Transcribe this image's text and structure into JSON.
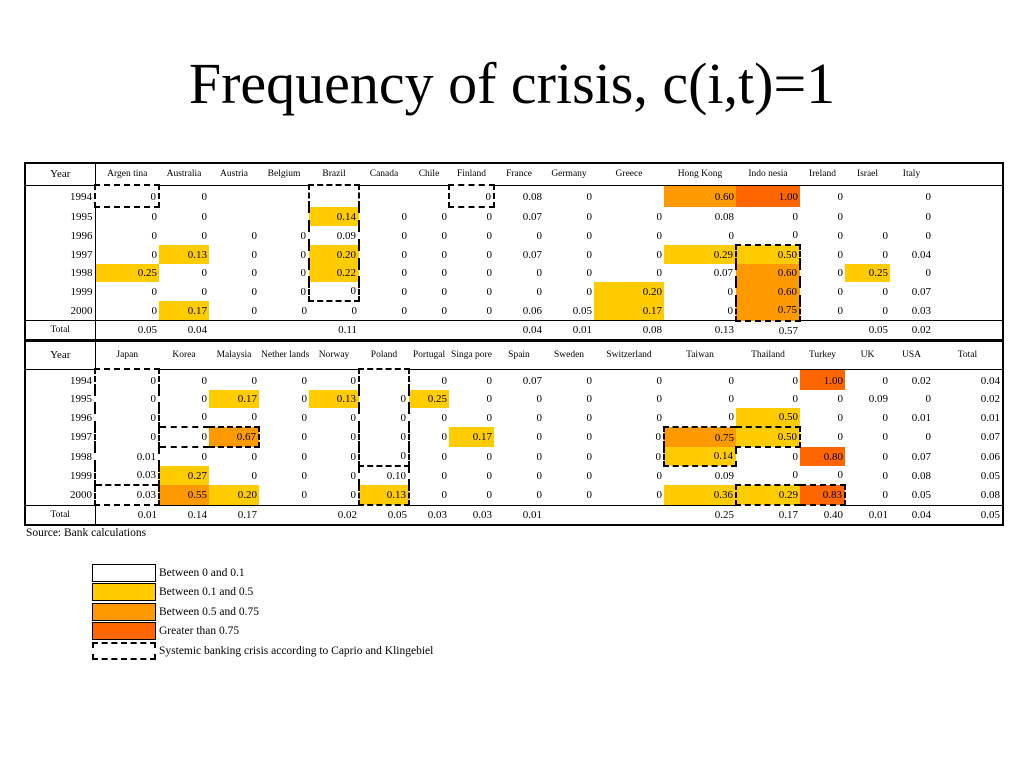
{
  "title": "Frequency of crisis, c(i,t)=1",
  "table1": {
    "year_label": "Year",
    "countries": [
      "Argen tina",
      "Australia",
      "Austria",
      "Belgium",
      "Brazil",
      "Canada",
      "Chile",
      "Finland",
      "France",
      "Germany",
      "Greece",
      "Hong Kong",
      "Indo nesia",
      "Ireland",
      "Israel",
      "Italy",
      ""
    ],
    "rows": [
      {
        "year": "1994",
        "values": [
          "0",
          "0",
          "",
          "",
          "",
          "",
          "",
          "0",
          "0.08",
          "0",
          "",
          "0.60",
          "1.00",
          "0",
          "",
          "0",
          ""
        ]
      },
      {
        "year": "1995",
        "values": [
          "0",
          "0",
          "",
          "",
          "0.14",
          "0",
          "0",
          "0",
          "0.07",
          "0",
          "0",
          "0.08",
          "0",
          "0",
          "",
          "0",
          ""
        ]
      },
      {
        "year": "1996",
        "values": [
          "0",
          "0",
          "0",
          "0",
          "0.09",
          "0",
          "0",
          "0",
          "0",
          "0",
          "0",
          "0",
          "0",
          "0",
          "0",
          "0",
          ""
        ]
      },
      {
        "year": "1997",
        "values": [
          "0",
          "0.13",
          "0",
          "0",
          "0.20",
          "0",
          "0",
          "0",
          "0.07",
          "0",
          "0",
          "0.29",
          "0.50",
          "0",
          "0",
          "0.04",
          ""
        ]
      },
      {
        "year": "1998",
        "values": [
          "0.25",
          "0",
          "0",
          "0",
          "0.22",
          "0",
          "0",
          "0",
          "0",
          "0",
          "0",
          "0.07",
          "0.60",
          "0",
          "0.25",
          "0",
          ""
        ]
      },
      {
        "year": "1999",
        "values": [
          "0",
          "0",
          "0",
          "0",
          "0",
          "0",
          "0",
          "0",
          "0",
          "0",
          "0.20",
          "0",
          "0.60",
          "0",
          "0",
          "0.07",
          ""
        ]
      },
      {
        "year": "2000",
        "values": [
          "0",
          "0.17",
          "0",
          "0",
          "0",
          "0",
          "0",
          "0",
          "0.06",
          "0.05",
          "0.17",
          "0",
          "0.75",
          "0",
          "0",
          "0.03",
          ""
        ]
      }
    ],
    "total_label": "Total",
    "totals": [
      "0.05",
      "0.04",
      "",
      "",
      "0.11",
      "",
      "",
      "",
      "0.04",
      "0.01",
      "0.08",
      "0.13",
      "0.57",
      "",
      "0.05",
      "0.02",
      ""
    ]
  },
  "table2": {
    "year_label": "Year",
    "countries": [
      "Japan",
      "Korea",
      "Malaysia",
      "Nether lands",
      "Norway",
      "Poland",
      "Portugal",
      "Singa pore",
      "Spain",
      "Sweden",
      "Switzerland",
      "Taiwan",
      "Thailand",
      "Turkey",
      "UK",
      "USA",
      "Total"
    ],
    "rows": [
      {
        "year": "1994",
        "values": [
          "0",
          "0",
          "0",
          "0",
          "0",
          "",
          "0",
          "0",
          "0.07",
          "0",
          "0",
          "0",
          "0",
          "1.00",
          "0",
          "0.02",
          "0.04"
        ]
      },
      {
        "year": "1995",
        "values": [
          "0",
          "0",
          "0.17",
          "0",
          "0.13",
          "0",
          "0.25",
          "0",
          "0",
          "0",
          "0",
          "0",
          "0",
          "0",
          "0.09",
          "0",
          "0.02"
        ]
      },
      {
        "year": "1996",
        "values": [
          "0",
          "0",
          "0",
          "0",
          "0",
          "0",
          "0",
          "0",
          "0",
          "0",
          "0",
          "0",
          "0.50",
          "0",
          "0",
          "0.01",
          "0.01"
        ]
      },
      {
        "year": "1997",
        "values": [
          "0",
          "0",
          "0.67",
          "0",
          "0",
          "0",
          "0",
          "0.17",
          "0",
          "0",
          "0",
          "0.75",
          "0.50",
          "0",
          "0",
          "0",
          "0.07"
        ]
      },
      {
        "year": "1998",
        "values": [
          "0.01",
          "0",
          "0",
          "0",
          "0",
          "0",
          "0",
          "0",
          "0",
          "0",
          "0",
          "0.14",
          "0",
          "0.80",
          "0",
          "0.07",
          "0.06"
        ]
      },
      {
        "year": "1999",
        "values": [
          "0.03",
          "0.27",
          "0",
          "0",
          "0",
          "0.10",
          "0",
          "0",
          "0",
          "0",
          "0",
          "0.09",
          "0",
          "0",
          "0",
          "0.08",
          "0.05"
        ]
      },
      {
        "year": "2000",
        "values": [
          "0.03",
          "0.55",
          "0.20",
          "0",
          "0",
          "0.13",
          "0",
          "0",
          "0",
          "0",
          "0",
          "0.36",
          "0.29",
          "0.83",
          "0",
          "0.05",
          "0.08"
        ]
      }
    ],
    "total_label": "Total",
    "totals": [
      "0.01",
      "0.14",
      "0.17",
      "",
      "0.02",
      "0.05",
      "0.03",
      "0.03",
      "0.01",
      "",
      "",
      "0.25",
      "0.17",
      "0.40",
      "0.01",
      "0.04",
      "0.05"
    ]
  },
  "source": "Source: Bank calculations",
  "legend": [
    {
      "label": "Between 0 and 0.1",
      "color": "#ffffff"
    },
    {
      "label": "Between 0.1 and 0.5",
      "color": "#ffcc00"
    },
    {
      "label": "Between 0.5 and 0.75",
      "color": "#ff9900"
    },
    {
      "label": "Greater than 0.75",
      "color": "#ff6600"
    },
    {
      "label": "Systemic banking crisis according to Caprio and Klingebiel",
      "color": "#ffffff",
      "dashed": true
    }
  ]
}
